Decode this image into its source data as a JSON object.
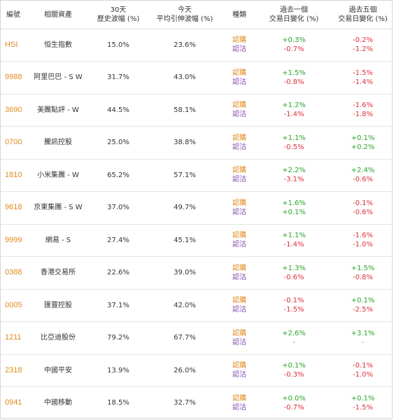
{
  "headers": {
    "code": "編號",
    "asset": "相關資產",
    "vol30_line1": "30天",
    "vol30_line2": "歷史波幅 (%)",
    "ivol_line1": "今天",
    "ivol_line2": "平均引伸波幅 (%)",
    "kind": "種類",
    "d1_line1": "過去一個",
    "d1_line2": "交易日變化 (%)",
    "d5_line1": "過去五個",
    "d5_line2": "交易日變化 (%)"
  },
  "rows": [
    {
      "code": "HSI",
      "asset": "恒生指數",
      "vol30": "15.0%",
      "ivol": "23.6%",
      "call": "認購",
      "put": "認沽",
      "d1_call": "+0.3%",
      "d1_put": "-0.7%",
      "d5_call": "-0.2%",
      "d5_put": "-1.2%"
    },
    {
      "code": "9988",
      "asset": "阿里巴巴 - S W",
      "vol30": "31.7%",
      "ivol": "43.0%",
      "call": "認購",
      "put": "認沽",
      "d1_call": "+1.5%",
      "d1_put": "-0.8%",
      "d5_call": "-1.5%",
      "d5_put": "-1.4%"
    },
    {
      "code": "3690",
      "asset": "美團點評 - W",
      "vol30": "44.5%",
      "ivol": "58.1%",
      "call": "認購",
      "put": "認沽",
      "d1_call": "+1.2%",
      "d1_put": "-1.4%",
      "d5_call": "-1.6%",
      "d5_put": "-1.8%"
    },
    {
      "code": "0700",
      "asset": "騰訊控股",
      "vol30": "25.0%",
      "ivol": "38.8%",
      "call": "認購",
      "put": "認沽",
      "d1_call": "+1.1%",
      "d1_put": "-0.5%",
      "d5_call": "+0.1%",
      "d5_put": "+0.2%"
    },
    {
      "code": "1810",
      "asset": "小米集團 - W",
      "vol30": "65.2%",
      "ivol": "57.1%",
      "call": "認購",
      "put": "認沽",
      "d1_call": "+2.2%",
      "d1_put": "-3.1%",
      "d5_call": "+2.4%",
      "d5_put": "-0.6%"
    },
    {
      "code": "9618",
      "asset": "京東集團 - S W",
      "vol30": "37.0%",
      "ivol": "49.7%",
      "call": "認購",
      "put": "認沽",
      "d1_call": "+1.6%",
      "d1_put": "+0.1%",
      "d5_call": "-0.1%",
      "d5_put": "-0.6%"
    },
    {
      "code": "9999",
      "asset": "網易 - S",
      "vol30": "27.4%",
      "ivol": "45.1%",
      "call": "認購",
      "put": "認沽",
      "d1_call": "+1.1%",
      "d1_put": "-1.4%",
      "d5_call": "-1.6%",
      "d5_put": "-1.0%"
    },
    {
      "code": "0388",
      "asset": "香港交易所",
      "vol30": "22.6%",
      "ivol": "39.0%",
      "call": "認購",
      "put": "認沽",
      "d1_call": "+1.3%",
      "d1_put": "-0.6%",
      "d5_call": "+1.5%",
      "d5_put": "-0.8%"
    },
    {
      "code": "0005",
      "asset": "匯豐控股",
      "vol30": "37.1%",
      "ivol": "42.0%",
      "call": "認購",
      "put": "認沽",
      "d1_call": "-0.1%",
      "d1_put": "-1.5%",
      "d5_call": "+0.1%",
      "d5_put": "-2.5%"
    },
    {
      "code": "1211",
      "asset": "比亞迪股份",
      "vol30": "79.2%",
      "ivol": "67.7%",
      "call": "認購",
      "put": "認沽",
      "d1_call": "+2.6%",
      "d1_put": "-",
      "d5_call": "+3.1%",
      "d5_put": "-"
    },
    {
      "code": "2318",
      "asset": "中國平安",
      "vol30": "13.9%",
      "ivol": "26.0%",
      "call": "認購",
      "put": "認沽",
      "d1_call": "+0.1%",
      "d1_put": "-0.3%",
      "d5_call": "-0.1%",
      "d5_put": "-1.0%"
    },
    {
      "code": "0941",
      "asset": "中國移動",
      "vol30": "18.5%",
      "ivol": "32.7%",
      "call": "認購",
      "put": "認沽",
      "d1_call": "+0.0%",
      "d1_put": "-0.7%",
      "d5_call": "+0.1%",
      "d5_put": "-1.5%"
    }
  ],
  "colors": {
    "code": "#e08a1e",
    "call": "#e08a1e",
    "put": "#8a4fb3",
    "positive": "#2aa52a",
    "negative": "#e0303a"
  }
}
